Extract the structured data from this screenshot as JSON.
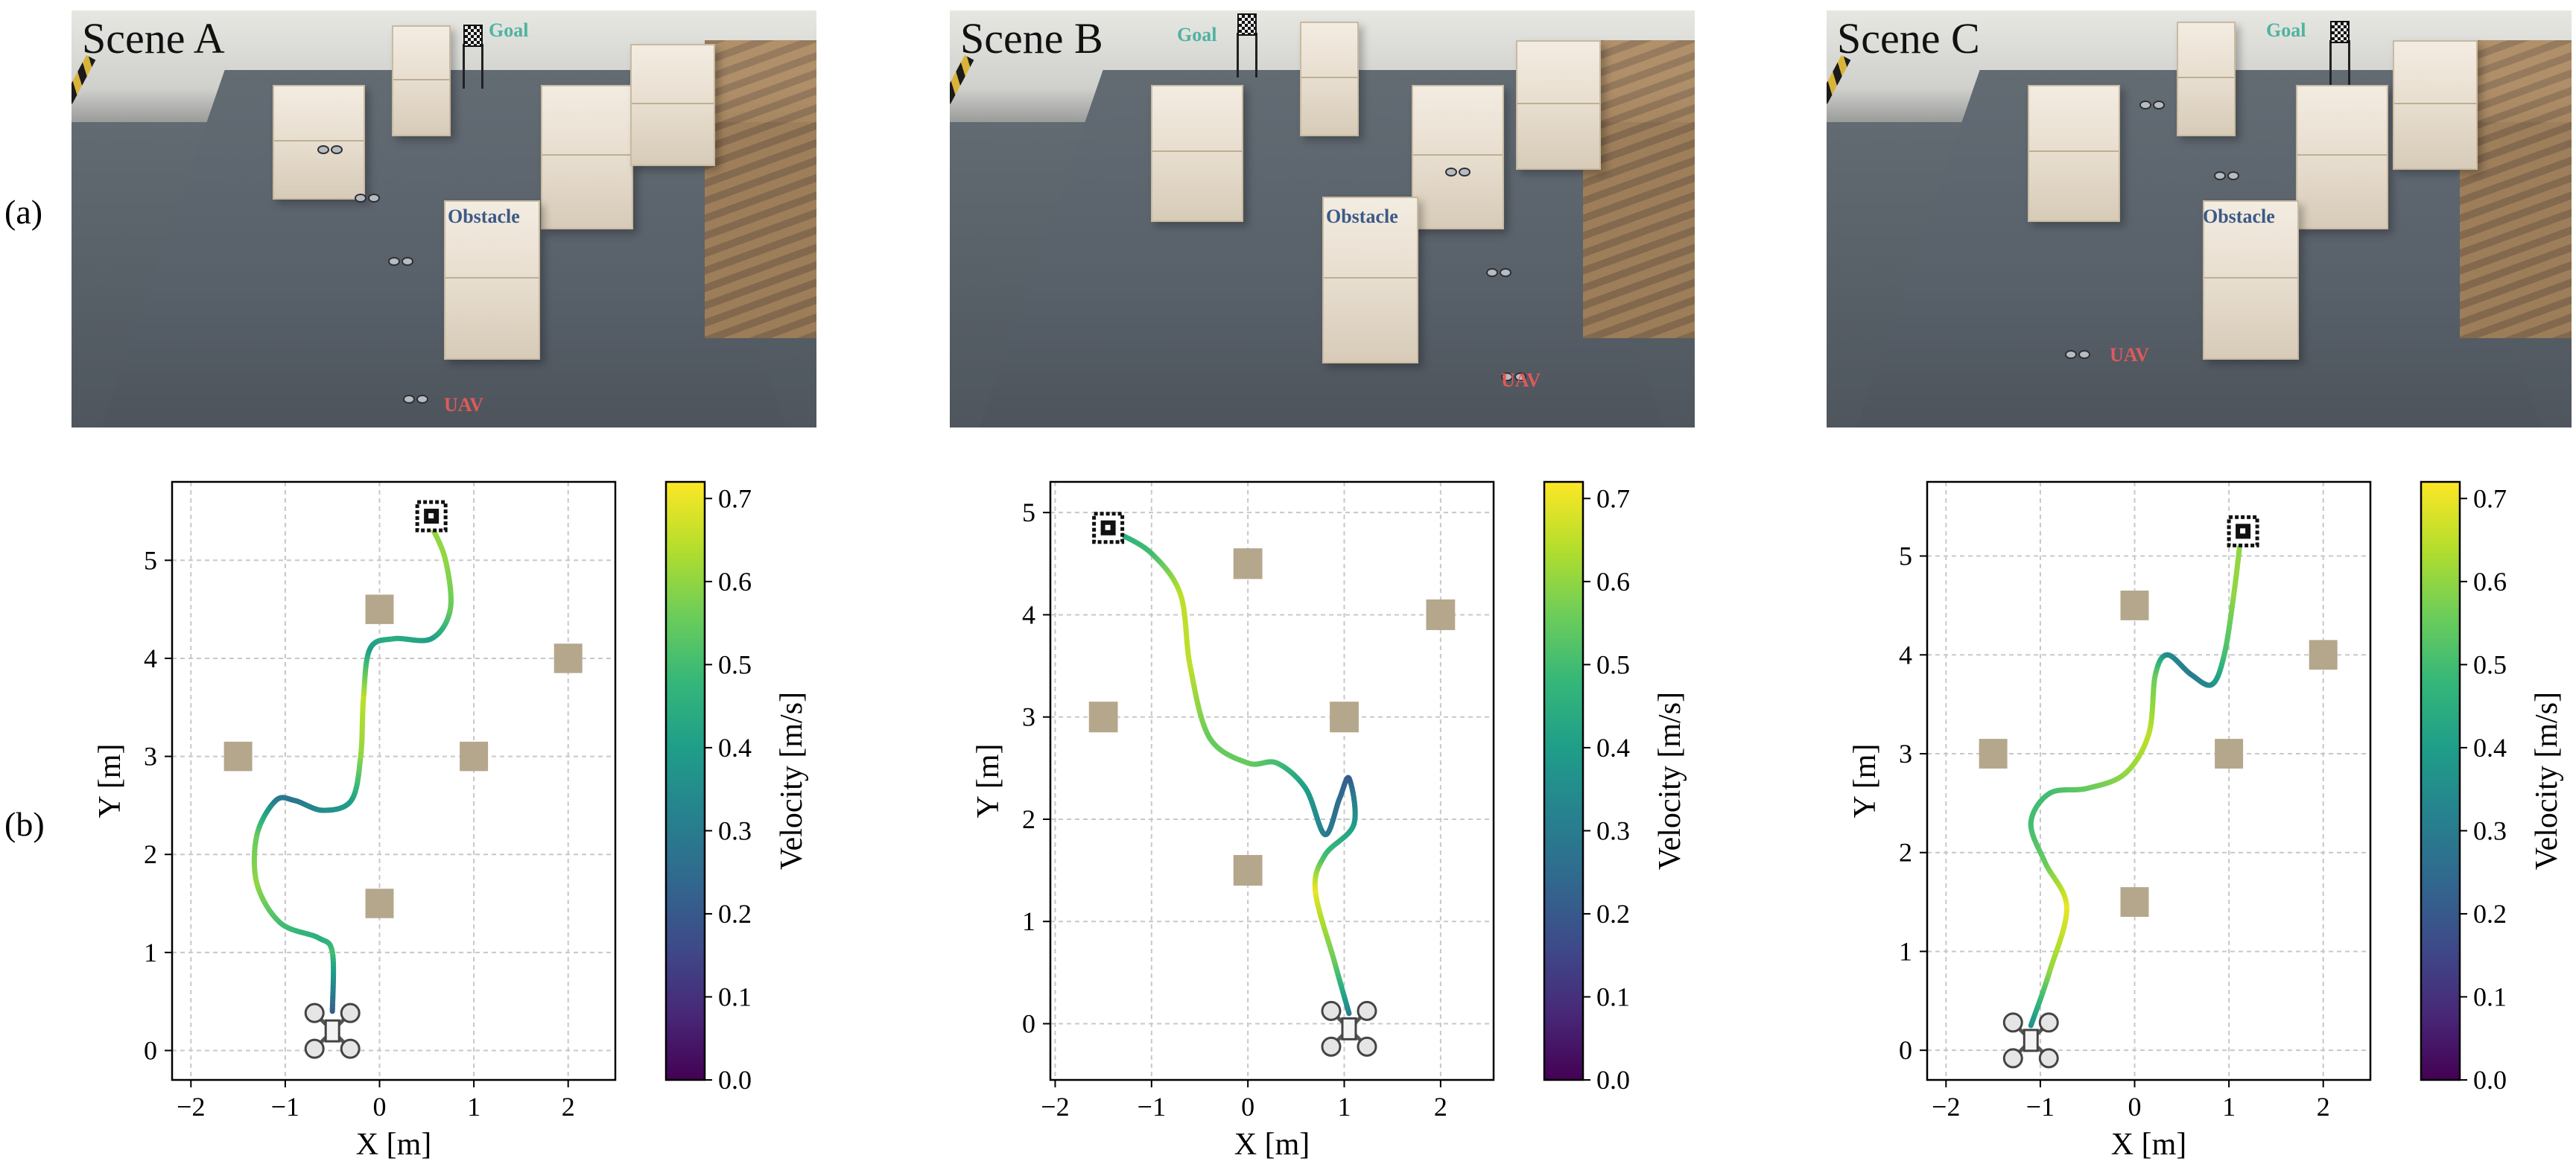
{
  "row_labels": {
    "a": "(a)",
    "b": "(b)"
  },
  "photos": [
    {
      "scene": "Scene A",
      "goal": "Goal",
      "obstacle": "Obstacle",
      "uav": "UAV"
    },
    {
      "scene": "Scene B",
      "goal": "Goal",
      "obstacle": "Obstacle",
      "uav": "UAV"
    },
    {
      "scene": "Scene C",
      "goal": "Goal",
      "obstacle": "Obstacle",
      "uav": "UAV"
    }
  ],
  "colors": {
    "obstacle": "#b5a78c",
    "grid": "#c8c8c8",
    "colormap": "viridis"
  },
  "chart_data": [
    {
      "type": "line",
      "xlabel": "X [m]",
      "ylabel": "Y [m]",
      "xlim": [
        -2.2,
        2.5
      ],
      "ylim": [
        -0.3,
        5.8
      ],
      "xticks": [
        -2,
        -1,
        0,
        1,
        2
      ],
      "yticks": [
        0,
        1,
        2,
        3,
        4,
        5
      ],
      "grid": true,
      "colorbar": {
        "label": "Velocity [m/s]",
        "min": 0.0,
        "max": 0.72,
        "ticks": [
          0.0,
          0.1,
          0.2,
          0.3,
          0.4,
          0.5,
          0.6,
          0.7
        ]
      },
      "obstacles": [
        [
          0,
          4.5
        ],
        [
          2,
          4
        ],
        [
          -1.5,
          3
        ],
        [
          1,
          3
        ],
        [
          0,
          1.5
        ]
      ],
      "start": [
        -0.5,
        0.2
      ],
      "goal": [
        0.55,
        5.45
      ],
      "path": [
        [
          -0.5,
          0.4
        ],
        [
          -0.5,
          1.0
        ],
        [
          -0.65,
          1.15
        ],
        [
          -1.05,
          1.3
        ],
        [
          -1.3,
          1.7
        ],
        [
          -1.3,
          2.2
        ],
        [
          -1.1,
          2.55
        ],
        [
          -0.9,
          2.55
        ],
        [
          -0.6,
          2.45
        ],
        [
          -0.3,
          2.55
        ],
        [
          -0.2,
          3.0
        ],
        [
          -0.17,
          3.6
        ],
        [
          -0.1,
          4.1
        ],
        [
          0.15,
          4.2
        ],
        [
          0.55,
          4.2
        ],
        [
          0.75,
          4.5
        ],
        [
          0.7,
          5.0
        ],
        [
          0.55,
          5.35
        ]
      ],
      "speed": [
        0.2,
        0.5,
        0.45,
        0.5,
        0.6,
        0.55,
        0.3,
        0.28,
        0.35,
        0.4,
        0.6,
        0.65,
        0.4,
        0.45,
        0.4,
        0.55,
        0.6,
        0.6
      ]
    },
    {
      "type": "line",
      "xlabel": "X [m]",
      "ylabel": "Y [m]",
      "xlim": [
        -2.05,
        2.55
      ],
      "ylim": [
        -0.55,
        5.3
      ],
      "xticks": [
        -2,
        -1,
        0,
        1,
        2
      ],
      "yticks": [
        0,
        1,
        2,
        3,
        4,
        5
      ],
      "grid": true,
      "colorbar": {
        "label": "Velocity [m/s]",
        "min": 0.0,
        "max": 0.72,
        "ticks": [
          0.0,
          0.1,
          0.2,
          0.3,
          0.4,
          0.5,
          0.6,
          0.7
        ]
      },
      "obstacles": [
        [
          0,
          4.5
        ],
        [
          2,
          4
        ],
        [
          -1.5,
          3
        ],
        [
          1,
          3
        ],
        [
          0,
          1.5
        ]
      ],
      "start": [
        1.05,
        -0.05
      ],
      "goal": [
        -1.45,
        4.85
      ],
      "path": [
        [
          1.05,
          0.1
        ],
        [
          0.9,
          0.6
        ],
        [
          0.7,
          1.3
        ],
        [
          0.8,
          1.65
        ],
        [
          1.1,
          1.95
        ],
        [
          1.05,
          2.4
        ],
        [
          0.95,
          2.2
        ],
        [
          0.8,
          1.85
        ],
        [
          0.6,
          2.3
        ],
        [
          0.3,
          2.55
        ],
        [
          0,
          2.55
        ],
        [
          -0.4,
          2.8
        ],
        [
          -0.6,
          3.5
        ],
        [
          -0.7,
          4.2
        ],
        [
          -1.0,
          4.6
        ],
        [
          -1.35,
          4.8
        ]
      ],
      "speed": [
        0.3,
        0.55,
        0.7,
        0.5,
        0.4,
        0.2,
        0.25,
        0.3,
        0.4,
        0.5,
        0.55,
        0.55,
        0.65,
        0.65,
        0.5,
        0.45
      ]
    },
    {
      "type": "line",
      "xlabel": "X [m]",
      "ylabel": "Y [m]",
      "xlim": [
        -2.2,
        2.5
      ],
      "ylim": [
        -0.3,
        5.75
      ],
      "xticks": [
        -2,
        -1,
        0,
        1,
        2
      ],
      "yticks": [
        0,
        1,
        2,
        3,
        4,
        5
      ],
      "grid": true,
      "colorbar": {
        "label": "Velocity [m/s]",
        "min": 0.0,
        "max": 0.72,
        "ticks": [
          0.0,
          0.1,
          0.2,
          0.3,
          0.4,
          0.5,
          0.6,
          0.7
        ]
      },
      "obstacles": [
        [
          0,
          4.5
        ],
        [
          2,
          4
        ],
        [
          -1.5,
          3
        ],
        [
          1,
          3
        ],
        [
          0,
          1.5
        ]
      ],
      "start": [
        -1.1,
        0.1
      ],
      "goal": [
        1.15,
        5.25
      ],
      "path": [
        [
          -1.1,
          0.25
        ],
        [
          -0.9,
          0.8
        ],
        [
          -0.72,
          1.45
        ],
        [
          -0.95,
          1.9
        ],
        [
          -1.1,
          2.3
        ],
        [
          -0.9,
          2.6
        ],
        [
          -0.5,
          2.65
        ],
        [
          -0.1,
          2.8
        ],
        [
          0.15,
          3.2
        ],
        [
          0.22,
          3.8
        ],
        [
          0.35,
          4.0
        ],
        [
          0.6,
          3.8
        ],
        [
          0.82,
          3.7
        ],
        [
          0.95,
          4.0
        ],
        [
          1.05,
          4.6
        ],
        [
          1.12,
          5.15
        ]
      ],
      "speed": [
        0.35,
        0.6,
        0.7,
        0.55,
        0.5,
        0.5,
        0.55,
        0.6,
        0.65,
        0.55,
        0.35,
        0.3,
        0.35,
        0.5,
        0.6,
        0.6
      ]
    }
  ]
}
